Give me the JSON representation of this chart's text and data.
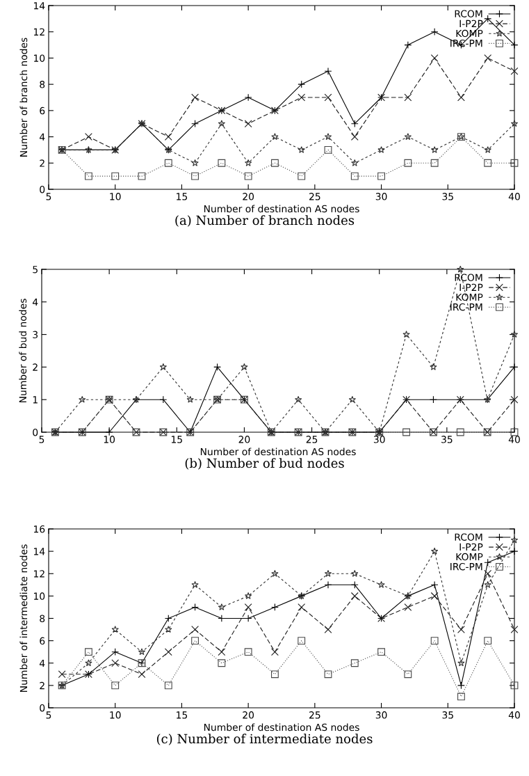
{
  "chart_data": [
    {
      "type": "line",
      "title": "(a) Number of branch nodes",
      "xlabel": "Number of destination AS nodes",
      "ylabel": "Number of branch nodes",
      "x": [
        6,
        8,
        10,
        12,
        14,
        16,
        18,
        20,
        22,
        24,
        26,
        28,
        30,
        32,
        34,
        36,
        38,
        40
      ],
      "xlim": [
        5,
        40
      ],
      "xticks": [
        5,
        10,
        15,
        20,
        25,
        30,
        35,
        40
      ],
      "ylim": [
        0,
        14
      ],
      "yticks": [
        0,
        2,
        4,
        6,
        8,
        10,
        12,
        14
      ],
      "legend": "top right",
      "grid": false,
      "series": [
        {
          "name": "RCOM",
          "color": "#000000",
          "marker": "plus",
          "line_style": "solid",
          "values": [
            3,
            3,
            3,
            5,
            3,
            5,
            6,
            7,
            6,
            8,
            9,
            5,
            7,
            11,
            12,
            11,
            13,
            11
          ]
        },
        {
          "name": "I-P2P",
          "color": "#1c1c1c",
          "marker": "cross",
          "line_style": "dashed",
          "values": [
            3,
            4,
            3,
            5,
            4,
            7,
            6,
            5,
            6,
            7,
            7,
            4,
            7,
            7,
            10,
            7,
            10,
            9
          ]
        },
        {
          "name": "KOMP",
          "color": "#303030",
          "marker": "star",
          "line_style": "dashed",
          "values": [
            3,
            3,
            3,
            5,
            3,
            2,
            5,
            2,
            4,
            3,
            4,
            2,
            3,
            4,
            3,
            4,
            3,
            5
          ]
        },
        {
          "name": "IRC-PM",
          "color": "#474747",
          "marker": "square",
          "line_style": "dotted",
          "values": [
            3,
            1,
            1,
            1,
            2,
            1,
            2,
            1,
            2,
            1,
            3,
            1,
            1,
            2,
            2,
            4,
            2,
            2
          ]
        }
      ]
    },
    {
      "type": "line",
      "title": "(b) Number of bud nodes",
      "xlabel": "Number of destination AS nodes",
      "ylabel": "Number of bud nodes",
      "x": [
        6,
        8,
        10,
        12,
        14,
        16,
        18,
        20,
        22,
        24,
        26,
        28,
        30,
        32,
        34,
        36,
        38,
        40
      ],
      "xlim": [
        5,
        40
      ],
      "xticks": [
        5,
        10,
        15,
        20,
        25,
        30,
        35,
        40
      ],
      "ylim": [
        0,
        5
      ],
      "yticks": [
        0,
        1,
        2,
        3,
        4,
        5
      ],
      "legend": "top right",
      "grid": false,
      "series": [
        {
          "name": "RCOM",
          "color": "#000000",
          "marker": "plus",
          "line_style": "solid",
          "values": [
            0,
            0,
            0,
            1,
            1,
            0,
            2,
            1,
            0,
            0,
            0,
            0,
            0,
            1,
            1,
            1,
            1,
            2
          ]
        },
        {
          "name": "I-P2P",
          "color": "#1c1c1c",
          "marker": "cross",
          "line_style": "dashed",
          "values": [
            0,
            0,
            1,
            0,
            0,
            0,
            1,
            1,
            0,
            0,
            0,
            0,
            0,
            1,
            0,
            1,
            0,
            1
          ]
        },
        {
          "name": "KOMP",
          "color": "#303030",
          "marker": "star",
          "line_style": "dashed",
          "values": [
            0,
            1,
            1,
            1,
            2,
            1,
            1,
            2,
            0,
            1,
            0,
            1,
            0,
            3,
            2,
            5,
            1,
            3
          ]
        },
        {
          "name": "IRC-PM",
          "color": "#474747",
          "marker": "square",
          "line_style": "dotted",
          "values": [
            0,
            0,
            1,
            0,
            0,
            0,
            1,
            1,
            0,
            0,
            0,
            0,
            0,
            0,
            0,
            0,
            0,
            0
          ]
        }
      ]
    },
    {
      "type": "line",
      "title": "(c) Number of intermediate nodes",
      "xlabel": "Number of destination AS nodes",
      "ylabel": "Number of intermediate nodes",
      "x": [
        6,
        8,
        10,
        12,
        14,
        16,
        18,
        20,
        22,
        24,
        26,
        28,
        30,
        32,
        34,
        36,
        38,
        40
      ],
      "xlim": [
        5,
        40
      ],
      "xticks": [
        5,
        10,
        15,
        20,
        25,
        30,
        35,
        40
      ],
      "ylim": [
        0,
        16
      ],
      "yticks": [
        0,
        2,
        4,
        6,
        8,
        10,
        12,
        14,
        16
      ],
      "legend": "top right",
      "grid": false,
      "series": [
        {
          "name": "RCOM",
          "color": "#000000",
          "marker": "plus",
          "line_style": "solid",
          "values": [
            2,
            3,
            5,
            4,
            8,
            9,
            8,
            8,
            9,
            10,
            11,
            11,
            8,
            10,
            11,
            2,
            13,
            14
          ]
        },
        {
          "name": "I-P2P",
          "color": "#1c1c1c",
          "marker": "cross",
          "line_style": "dashed",
          "values": [
            3,
            3,
            4,
            3,
            5,
            7,
            5,
            9,
            5,
            9,
            7,
            10,
            8,
            9,
            10,
            7,
            12,
            7
          ]
        },
        {
          "name": "KOMP",
          "color": "#303030",
          "marker": "star",
          "line_style": "dashed",
          "values": [
            2,
            4,
            7,
            5,
            7,
            11,
            9,
            10,
            12,
            10,
            12,
            12,
            11,
            10,
            14,
            4,
            11,
            15
          ]
        },
        {
          "name": "IRC-PM",
          "color": "#474747",
          "marker": "square",
          "line_style": "dotted",
          "values": [
            2,
            5,
            2,
            4,
            2,
            6,
            4,
            5,
            3,
            6,
            3,
            4,
            5,
            3,
            6,
            1,
            6,
            2
          ]
        }
      ]
    }
  ]
}
